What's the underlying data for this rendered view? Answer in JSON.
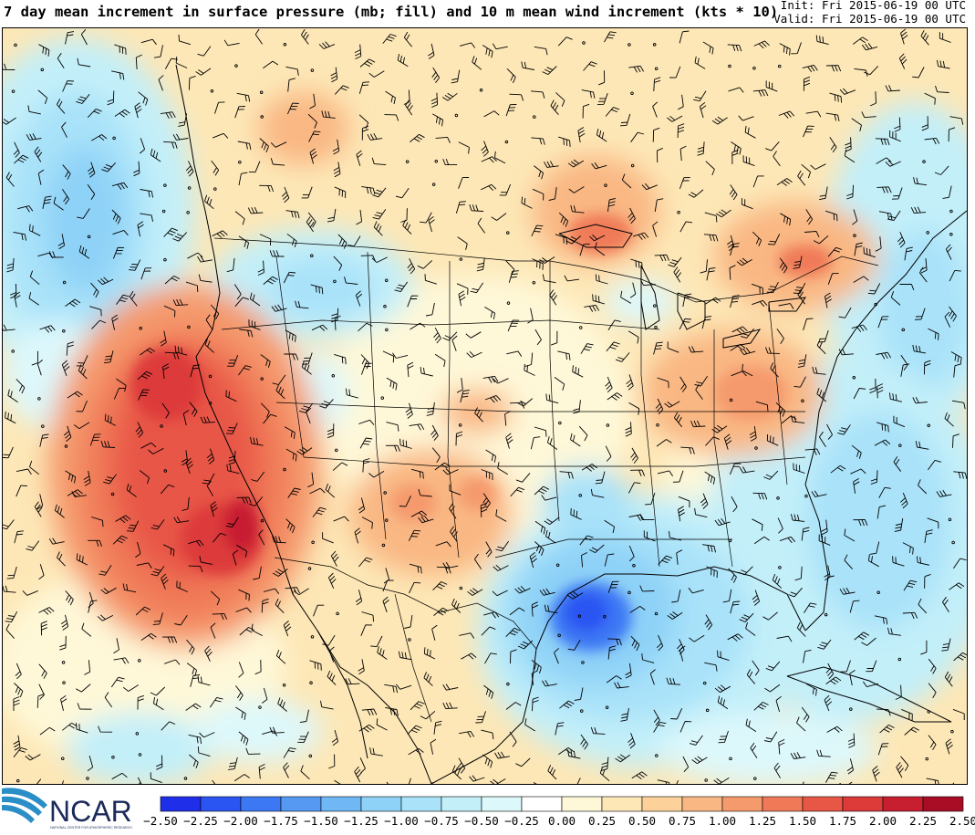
{
  "header": {
    "title": "7 day mean increment in surface pressure (mb; fill) and 10 m mean wind increment (kts * 10)",
    "init_label": "Init: Fri 2015-06-19 00 UTC",
    "valid_label": "Valid: Fri 2015-06-19 00 UTC"
  },
  "logo": {
    "text": "NCAR",
    "subtext": "NATIONAL CENTER FOR ATMOSPHERIC RESEARCH"
  },
  "colorbar": {
    "ticks": [
      "−2.50",
      "−2.25",
      "−2.00",
      "−1.75",
      "−1.50",
      "−1.25",
      "−1.00",
      "−0.75",
      "−0.50",
      "−0.25",
      "0.00",
      "0.25",
      "0.50",
      "0.75",
      "1.00",
      "1.25",
      "1.50",
      "1.75",
      "2.00",
      "2.25",
      "2.50"
    ],
    "colors": [
      "#1f2ee8",
      "#2b55f2",
      "#3d78f4",
      "#5599f2",
      "#6fb8f5",
      "#8ed2f7",
      "#a9e2f9",
      "#c3eff9",
      "#ddf8fb",
      "#ffffff",
      "#fef8d8",
      "#fde7b6",
      "#fcd19a",
      "#f9b783",
      "#f59a6d",
      "#f07a58",
      "#e85746",
      "#dd3a3a",
      "#c71e30",
      "#a80d25"
    ]
  },
  "chart_data": {
    "type": "heatmap",
    "title": "7 day mean increment in surface pressure (mb; fill) and 10 m mean wind increment (kts * 10)",
    "field": "surface pressure increment (mb)",
    "overlay": "10 m mean wind increment barbs (kts * 10)",
    "range": [
      -2.5,
      2.5
    ],
    "levels": [
      -2.5,
      -2.25,
      -2.0,
      -1.75,
      -1.5,
      -1.25,
      -1.0,
      -0.75,
      -0.5,
      -0.25,
      0.0,
      0.25,
      0.5,
      0.75,
      1.0,
      1.25,
      1.5,
      1.75,
      2.0,
      2.25,
      2.5
    ],
    "init": "Fri 2015-06-19 00 UTC",
    "valid": "Fri 2015-06-19 00 UTC"
  }
}
